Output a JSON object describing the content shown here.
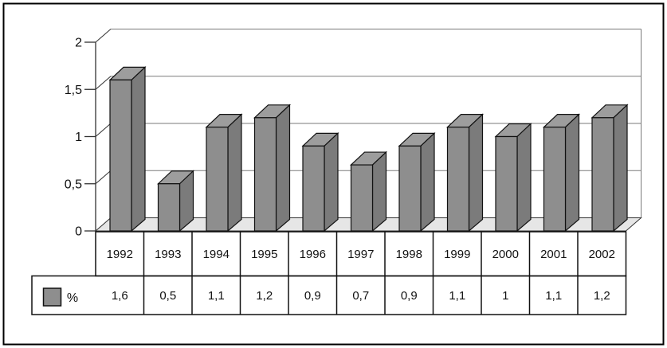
{
  "chart_data": {
    "type": "bar",
    "style": "3d-column",
    "title": "",
    "categories": [
      "1992",
      "1993",
      "1994",
      "1995",
      "1996",
      "1997",
      "1998",
      "1999",
      "2000",
      "2001",
      "2002"
    ],
    "series": [
      {
        "name": "%",
        "values": [
          1.6,
          0.5,
          1.1,
          1.2,
          0.9,
          0.7,
          0.9,
          1.1,
          1,
          1.1,
          1.2
        ]
      }
    ],
    "value_labels_display": [
      "1,6",
      "0,5",
      "1,1",
      "1,2",
      "0,9",
      "0,7",
      "0,9",
      "1,1",
      "1",
      "1,1",
      "1,2"
    ],
    "y_tick_labels": [
      "0",
      "0,5",
      "1",
      "1,5",
      "2"
    ],
    "y_tick_values": [
      0,
      0.5,
      1,
      1.5,
      2
    ],
    "ylim": [
      0,
      2
    ],
    "grid": true,
    "decimal_separator": ",",
    "legend": {
      "position": "bottom-table",
      "label": "%"
    },
    "colors": {
      "bar_front": "#8e8e8e",
      "bar_top": "#9d9d9d",
      "bar_side": "#7b7b7b",
      "bar_outline": "#111111",
      "floor": "#e6e6e6",
      "gridline": "#7a7a7a",
      "axis": "#333333",
      "table_border": "#111111",
      "text": "#111111",
      "background": "#ffffff",
      "frame": "#000000"
    }
  }
}
